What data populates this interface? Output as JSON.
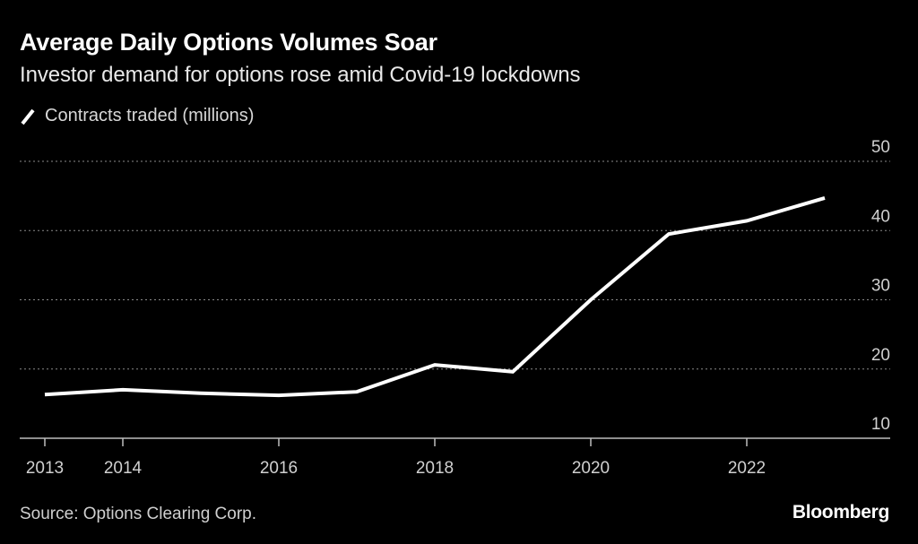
{
  "header": {
    "title": "Average Daily Options Volumes Soar",
    "subtitle": "Investor demand for options rose amid Covid-19 lockdowns"
  },
  "legend": {
    "icon": "line-swatch-icon",
    "label": "Contracts traded (millions)"
  },
  "footer": {
    "source": "Source: Options Clearing Corp.",
    "brand": "Bloomberg"
  },
  "colors": {
    "background": "#000000",
    "line": "#ffffff",
    "grid": "#8a8a8a",
    "axis": "#bdbdbd",
    "text": "#d0d0d0"
  },
  "chart_data": {
    "type": "line",
    "title": "Average Daily Options Volumes Soar",
    "subtitle": "Investor demand for options rose amid Covid-19 lockdowns",
    "xlabel": "",
    "ylabel": "",
    "x": [
      2013,
      2014,
      2015,
      2016,
      2017,
      2018,
      2019,
      2020,
      2021,
      2022,
      2023
    ],
    "series": [
      {
        "name": "Contracts traded (millions)",
        "values": [
          16.3,
          17.0,
          16.5,
          16.2,
          16.7,
          20.6,
          19.6,
          30.0,
          39.5,
          41.4,
          44.7
        ]
      }
    ],
    "xlim": [
      2012.67,
      2024.5
    ],
    "ylim": [
      10,
      50
    ],
    "x_ticks": [
      2013,
      2014,
      2016,
      2018,
      2020,
      2022
    ],
    "x_tick_labels": [
      "2013",
      "2014",
      "2016",
      "2018",
      "2020",
      "2022"
    ],
    "y_ticks": [
      10,
      20,
      30,
      40,
      50
    ],
    "y_tick_labels": [
      "10",
      "20",
      "30",
      "40",
      "50"
    ],
    "y_axis_side": "right",
    "grid": "horizontal-dotted",
    "legend_position": "top-left",
    "source": "Source: Options Clearing Corp."
  }
}
